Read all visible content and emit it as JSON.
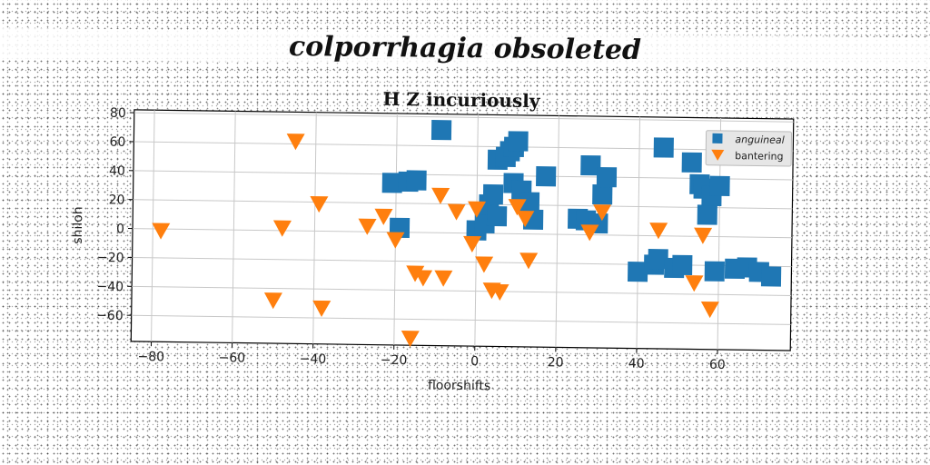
{
  "super_title": "colporrhagia obsoleted",
  "chart_data": {
    "type": "scatter",
    "title": "H Z incuriously",
    "xlabel": "floorshifts",
    "ylabel": "shiloh",
    "xlim": [
      -85,
      78
    ],
    "ylim": [
      -78,
      82
    ],
    "xticks": [
      -80,
      -60,
      -40,
      -20,
      0,
      20,
      40,
      60
    ],
    "yticks": [
      -60,
      -40,
      -20,
      0,
      20,
      40,
      60,
      80
    ],
    "grid": true,
    "legend_position": "upper right",
    "series": [
      {
        "name": "anguineal",
        "marker": "square",
        "color": "#1f77b4",
        "points": [
          [
            -9,
            71
          ],
          [
            -21,
            34
          ],
          [
            -17,
            35
          ],
          [
            -15,
            36
          ],
          [
            -19,
            3
          ],
          [
            0,
            2
          ],
          [
            2,
            7
          ],
          [
            3,
            20
          ],
          [
            4,
            27
          ],
          [
            5,
            12
          ],
          [
            5,
            51
          ],
          [
            7,
            53
          ],
          [
            8,
            57
          ],
          [
            9,
            60
          ],
          [
            10,
            64
          ],
          [
            9,
            35
          ],
          [
            11,
            30
          ],
          [
            13,
            22
          ],
          [
            14,
            10
          ],
          [
            17,
            40
          ],
          [
            25,
            11
          ],
          [
            27,
            10
          ],
          [
            28,
            48
          ],
          [
            30,
            8
          ],
          [
            31,
            28
          ],
          [
            32,
            40
          ],
          [
            40,
            -25
          ],
          [
            44,
            -20
          ],
          [
            45,
            -16
          ],
          [
            46,
            61
          ],
          [
            49,
            -22
          ],
          [
            51,
            -20
          ],
          [
            53,
            51
          ],
          [
            55,
            36
          ],
          [
            56,
            33
          ],
          [
            57,
            15
          ],
          [
            58,
            28
          ],
          [
            59,
            -24
          ],
          [
            60,
            35
          ],
          [
            64,
            -22
          ],
          [
            67,
            -21
          ],
          [
            70,
            -24
          ],
          [
            73,
            -27
          ]
        ]
      },
      {
        "name": "bantering",
        "marker": "triangle-down",
        "color": "#ff7f0e",
        "points": [
          [
            -78,
            -1
          ],
          [
            -45,
            62
          ],
          [
            -48,
            2
          ],
          [
            -50,
            -48
          ],
          [
            -39,
            19
          ],
          [
            -38,
            -53
          ],
          [
            -27,
            4
          ],
          [
            -23,
            11
          ],
          [
            -20,
            -5
          ],
          [
            -16,
            -73
          ],
          [
            -15,
            -28
          ],
          [
            -13,
            -31
          ],
          [
            -9,
            26
          ],
          [
            -8,
            -31
          ],
          [
            -5,
            15
          ],
          [
            -1,
            -7
          ],
          [
            0,
            17
          ],
          [
            2,
            -21
          ],
          [
            4,
            -39
          ],
          [
            6,
            -40
          ],
          [
            10,
            19
          ],
          [
            12,
            11
          ],
          [
            13,
            -18
          ],
          [
            28,
            2
          ],
          [
            31,
            16
          ],
          [
            45,
            4
          ],
          [
            54,
            -32
          ],
          [
            56,
            1
          ],
          [
            58,
            -50
          ]
        ]
      }
    ]
  }
}
